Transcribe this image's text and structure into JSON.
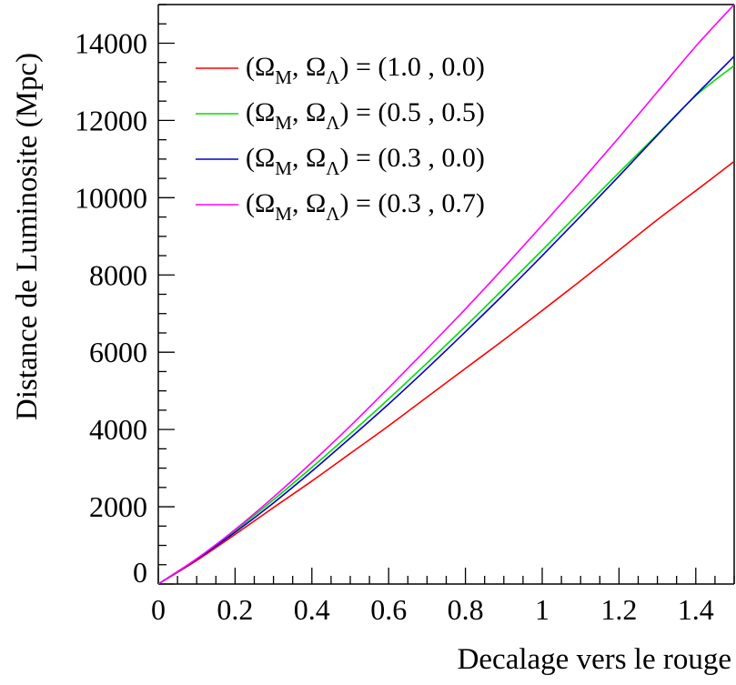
{
  "chart_data": {
    "type": "line",
    "title": "",
    "xlabel": "Decalage vers le rouge",
    "ylabel": "Distance de Luminosite (Mpc)",
    "xlim": [
      0,
      1.5
    ],
    "ylim": [
      0,
      15000
    ],
    "x_ticks": [
      0,
      0.2,
      0.4,
      0.6,
      0.8,
      1.0,
      1.2,
      1.4
    ],
    "x_tick_labels": [
      "0",
      "0.2",
      "0.4",
      "0.6",
      "0.8",
      "1",
      "1.2",
      "1.4"
    ],
    "y_ticks": [
      0,
      2000,
      4000,
      6000,
      8000,
      10000,
      12000,
      14000
    ],
    "y_tick_labels": [
      "0",
      "2000",
      "4000",
      "6000",
      "8000",
      "10000",
      "12000",
      "14000"
    ],
    "grid": false,
    "legend_position": "top-left",
    "legend": [
      {
        "series_index": 0,
        "omega_m_symbol": "Ω",
        "omega_m_sub": "M",
        "omega_l_symbol": "Ω",
        "omega_l_sub": "Λ",
        "value_text": "= (1.0 , 0.0)"
      },
      {
        "series_index": 1,
        "omega_m_symbol": "Ω",
        "omega_m_sub": "M",
        "omega_l_symbol": "Ω",
        "omega_l_sub": "Λ",
        "value_text": "= (0.5 , 0.5)"
      },
      {
        "series_index": 2,
        "omega_m_symbol": "Ω",
        "omega_m_sub": "M",
        "omega_l_symbol": "Ω",
        "omega_l_sub": "Λ",
        "value_text": "= (0.3 , 0.0)"
      },
      {
        "series_index": 3,
        "omega_m_symbol": "Ω",
        "omega_m_sub": "M",
        "omega_l_symbol": "Ω",
        "omega_l_sub": "Λ",
        "value_text": "= (0.3 , 0.7)"
      }
    ],
    "x": [
      0,
      0.1,
      0.2,
      0.3,
      0.4,
      0.5,
      0.6,
      0.7,
      0.8,
      0.9,
      1.0,
      1.1,
      1.2,
      1.3,
      1.4,
      1.5
    ],
    "series": [
      {
        "color": "#ff0000",
        "values": [
          0,
          610,
          1285,
          1980,
          2665,
          3380,
          4095,
          4840,
          5580,
          6320,
          7080,
          7850,
          8640,
          9430,
          10180,
          10940
        ]
      },
      {
        "color": "#00dd00",
        "values": [
          0,
          650,
          1380,
          2180,
          3020,
          3890,
          4790,
          5720,
          6670,
          7650,
          8640,
          9650,
          10650,
          11640,
          12640,
          13420
        ]
      },
      {
        "color": "#0000cc",
        "values": [
          0,
          640,
          1340,
          2100,
          2920,
          3780,
          4660,
          5580,
          6530,
          7500,
          8500,
          9520,
          10560,
          11620,
          12660,
          13660
        ]
      },
      {
        "color": "#ff00ff",
        "values": [
          0,
          655,
          1410,
          2250,
          3150,
          4090,
          5080,
          6090,
          7120,
          8190,
          9290,
          10410,
          11560,
          12740,
          13920,
          15000
        ]
      }
    ]
  }
}
